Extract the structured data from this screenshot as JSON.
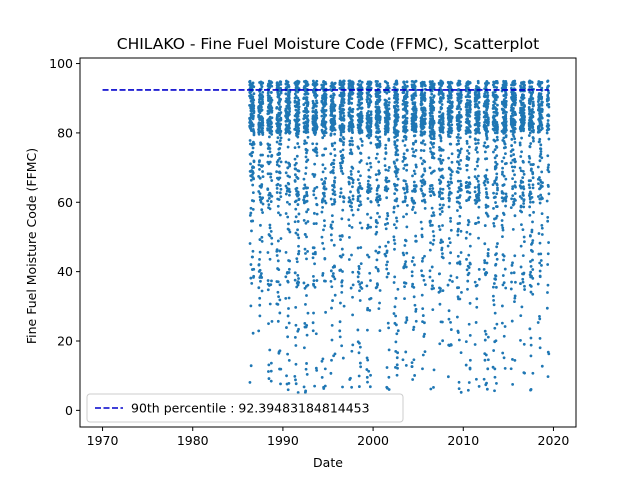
{
  "chart_data": {
    "type": "scatter",
    "title": "CHILAKO - Fine Fuel Moisture Code (FFMC), Scatterplot",
    "xlabel": "Date",
    "ylabel": "Fine Fuel Moisture Code (FFMC)",
    "xlim": [
      1967.5,
      2022.5
    ],
    "ylim": [
      -4.8,
      101.6
    ],
    "xticks": [
      1970,
      1980,
      1990,
      2000,
      2010,
      2020
    ],
    "yticks": [
      0,
      20,
      40,
      60,
      80,
      100
    ],
    "grid": false,
    "legend_position": "lower-left",
    "series": [
      {
        "name": "FFMC",
        "color": "#1f77b4",
        "seasons": {
          "start_year": 1986,
          "end_year": 2019,
          "season_start": 0.3,
          "season_end": 0.8
        },
        "typical_range": [
          60,
          95
        ]
      }
    ],
    "reference_lines": [
      {
        "label": "90th percentile : 92.39483184814453",
        "value": 92.39483184814453,
        "x_range": [
          1970,
          2019.5
        ],
        "color": "#0000cc",
        "style": "dashed"
      }
    ]
  }
}
